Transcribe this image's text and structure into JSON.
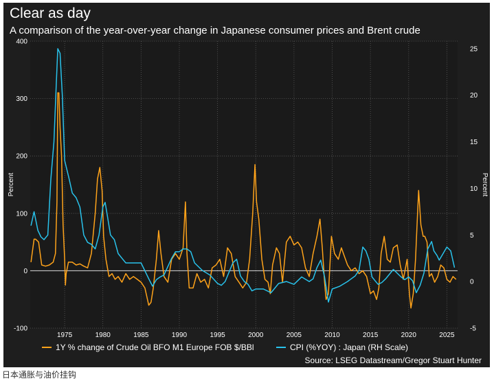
{
  "title": "Clear as day",
  "subtitle": "A comparison of the year-over-year change in Japanese consumer prices and Brent crude",
  "caption": "日本通胀与油价挂钩",
  "chart_data": {
    "type": "line",
    "y_left": {
      "label": "Percent",
      "lim": [
        -100,
        400
      ],
      "ticks": [
        -100,
        0,
        100,
        200,
        300,
        400
      ]
    },
    "y_right": {
      "label": "Percent",
      "lim": [
        -5,
        25.8
      ],
      "ticks": [
        -5,
        0,
        5,
        10,
        15,
        20,
        25
      ]
    },
    "x": {
      "lim": [
        1970.5,
        2026.4
      ],
      "ticks": [
        1975,
        1980,
        1985,
        1990,
        1995,
        2000,
        2005,
        2010,
        2015,
        2020,
        2025
      ]
    },
    "source": "Source: LSEG Datastream/Gregor Stuart Hunter",
    "colors": {
      "oil": "#ffa31a",
      "cpi": "#29c3ec",
      "background": "#1e1e1e",
      "grid": "#5a5a5a",
      "zero": "#dddddd"
    },
    "series": [
      {
        "name": "1Y % change of Crude Oil BFO M1 Europe FOB $/BBl",
        "axis": "left",
        "color": "#ffa31a",
        "x": [
          1970.6,
          1971.0,
          1971.2,
          1971.6,
          1972.0,
          1972.5,
          1973.0,
          1973.5,
          1973.8,
          1974.0,
          1974.1,
          1974.25,
          1974.4,
          1974.6,
          1974.8,
          1975.0,
          1975.1,
          1975.2,
          1975.5,
          1976.0,
          1976.5,
          1977.0,
          1977.5,
          1978.0,
          1978.5,
          1979.0,
          1979.3,
          1979.6,
          1979.9,
          1980.1,
          1980.4,
          1980.8,
          1981.2,
          1981.6,
          1982.0,
          1982.5,
          1983.0,
          1983.5,
          1984.0,
          1984.5,
          1985.0,
          1985.5,
          1986.0,
          1986.3,
          1986.6,
          1987.0,
          1987.3,
          1987.6,
          1988.0,
          1988.5,
          1989.0,
          1989.5,
          1990.0,
          1990.5,
          1990.8,
          1991.0,
          1991.3,
          1991.8,
          1992.3,
          1992.8,
          1993.3,
          1993.8,
          1994.3,
          1994.8,
          1995.3,
          1995.8,
          1996.3,
          1996.8,
          1997.3,
          1997.8,
          1998.3,
          1998.8,
          1999.2,
          1999.6,
          1999.9,
          2000.1,
          2000.4,
          2000.8,
          2001.2,
          2001.6,
          2001.9,
          2002.2,
          2002.7,
          2003.1,
          2003.5,
          2004.0,
          2004.5,
          2005.0,
          2005.5,
          2006.0,
          2006.5,
          2007.0,
          2007.5,
          2008.0,
          2008.4,
          2008.7,
          2009.0,
          2009.2,
          2009.5,
          2009.9,
          2010.3,
          2010.8,
          2011.2,
          2011.6,
          2012.0,
          2012.5,
          2013.0,
          2013.5,
          2014.0,
          2014.5,
          2015.0,
          2015.4,
          2015.8,
          2016.1,
          2016.4,
          2016.8,
          2017.2,
          2017.6,
          2018.0,
          2018.5,
          2018.9,
          2019.3,
          2019.8,
          2020.1,
          2020.3,
          2020.6,
          2020.9,
          2021.1,
          2021.3,
          2021.6,
          2021.9,
          2022.1,
          2022.4,
          2022.7,
          2023.0,
          2023.4,
          2023.8,
          2024.2,
          2024.6,
          2025.0,
          2025.4,
          2025.8,
          2026.2
        ],
        "values": [
          15,
          55,
          55,
          50,
          10,
          8,
          10,
          15,
          30,
          120,
          310,
          310,
          250,
          200,
          80,
          20,
          -25,
          -5,
          15,
          15,
          10,
          12,
          8,
          5,
          30,
          100,
          160,
          180,
          140,
          60,
          20,
          -10,
          -5,
          -15,
          -10,
          -20,
          -5,
          -15,
          -10,
          -15,
          -20,
          -30,
          -60,
          -55,
          -30,
          20,
          70,
          30,
          -10,
          -20,
          20,
          30,
          20,
          40,
          120,
          30,
          -30,
          -30,
          -5,
          -20,
          -15,
          -30,
          5,
          10,
          20,
          -10,
          40,
          30,
          -10,
          -20,
          -30,
          -20,
          20,
          100,
          185,
          120,
          90,
          20,
          -15,
          -20,
          -40,
          10,
          40,
          30,
          -20,
          50,
          60,
          45,
          50,
          40,
          5,
          -10,
          30,
          60,
          90,
          40,
          -20,
          -50,
          -40,
          60,
          30,
          20,
          40,
          25,
          10,
          0,
          5,
          -5,
          0,
          -10,
          -40,
          -35,
          -50,
          -30,
          30,
          60,
          20,
          15,
          40,
          45,
          10,
          -15,
          20,
          -40,
          -65,
          -40,
          20,
          80,
          140,
          80,
          60,
          60,
          50,
          -10,
          -5,
          -20,
          -10,
          10,
          5,
          -15,
          -20,
          -10,
          -15
        ]
      },
      {
        "name": "CPI (%YOY) : Japan (RH Scale)",
        "axis": "right",
        "color": "#29c3ec",
        "x": [
          1970.6,
          1971.0,
          1971.5,
          1971.9,
          1972.3,
          1972.8,
          1973.2,
          1973.6,
          1973.9,
          1974.1,
          1974.4,
          1974.7,
          1975.0,
          1975.3,
          1975.6,
          1976.0,
          1976.5,
          1977.0,
          1977.5,
          1978.0,
          1978.5,
          1979.0,
          1979.5,
          1980.0,
          1980.3,
          1980.6,
          1981.0,
          1981.5,
          1982.0,
          1982.5,
          1983.0,
          1984.0,
          1985.0,
          1986.0,
          1986.5,
          1987.0,
          1987.5,
          1988.0,
          1989.0,
          1989.5,
          1990.0,
          1990.5,
          1991.0,
          1991.5,
          1992.0,
          1993.0,
          1994.0,
          1995.0,
          1995.5,
          1996.0,
          1997.0,
          1997.5,
          1998.0,
          1998.5,
          1999.0,
          1999.5,
          2000.0,
          2001.0,
          2002.0,
          2003.0,
          2004.0,
          2005.0,
          2006.0,
          2007.0,
          2007.5,
          2008.0,
          2008.5,
          2009.0,
          2009.5,
          2010.0,
          2011.0,
          2012.0,
          2013.0,
          2013.5,
          2014.0,
          2014.4,
          2014.8,
          2015.2,
          2015.6,
          2016.0,
          2016.5,
          2017.0,
          2018.0,
          2019.0,
          2019.5,
          2020.0,
          2020.5,
          2021.0,
          2021.5,
          2022.0,
          2022.5,
          2023.0,
          2023.3,
          2023.7,
          2024.0,
          2024.5,
          2025.0,
          2025.5,
          2026.0
        ],
        "values": [
          6,
          7.5,
          5.5,
          4.8,
          4.5,
          5,
          11,
          15,
          21,
          25,
          24.5,
          20,
          13,
          12,
          11,
          9.5,
          9,
          8,
          5,
          4.2,
          4,
          3.5,
          5,
          8,
          8.5,
          7,
          5,
          4.5,
          3,
          2.5,
          2,
          2,
          2,
          0.3,
          -0.5,
          0.2,
          0.5,
          0.7,
          2.5,
          3.2,
          3.2,
          3.5,
          3.5,
          3.2,
          2,
          1.2,
          0.7,
          -0.2,
          -0.4,
          0,
          2,
          2.4,
          0.6,
          0,
          -0.3,
          -1,
          -0.8,
          -0.8,
          -1.2,
          -0.2,
          0,
          -0.3,
          0.5,
          0,
          0.3,
          1.5,
          2.3,
          0.5,
          -2.2,
          -0.8,
          -0.5,
          0,
          0.6,
          1.2,
          3.7,
          3.3,
          2.4,
          0.5,
          0.1,
          -0.3,
          -0.1,
          0.3,
          1.3,
          0.5,
          0.2,
          0.5,
          0.1,
          -1.2,
          -0.4,
          0.9,
          3.5,
          4.3,
          3.3,
          2.8,
          2.3,
          3.0,
          3.7,
          3.3,
          1.5
        ]
      }
    ]
  }
}
